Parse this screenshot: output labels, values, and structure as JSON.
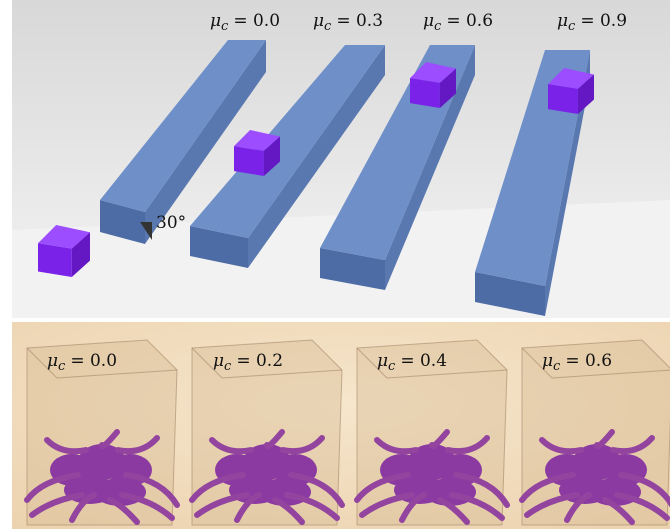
{
  "top_panel": {
    "labels": [
      {
        "symbol": "μ",
        "subscript": "c",
        "text": "= 0.0"
      },
      {
        "symbol": "μ",
        "subscript": "c",
        "text": "= 0.3"
      },
      {
        "symbol": "μ",
        "subscript": "c",
        "text": "= 0.6"
      },
      {
        "symbol": "μ",
        "subscript": "c",
        "text": "= 0.9"
      }
    ],
    "angle_label": "30°"
  },
  "bottom_panel": {
    "labels": [
      {
        "symbol": "μ",
        "subscript": "c",
        "text": "= 0.0"
      },
      {
        "symbol": "μ",
        "subscript": "c",
        "text": "= 0.2"
      },
      {
        "symbol": "μ",
        "subscript": "c",
        "text": "= 0.4"
      },
      {
        "symbol": "μ",
        "subscript": "c",
        "text": "= 0.6"
      }
    ]
  }
}
